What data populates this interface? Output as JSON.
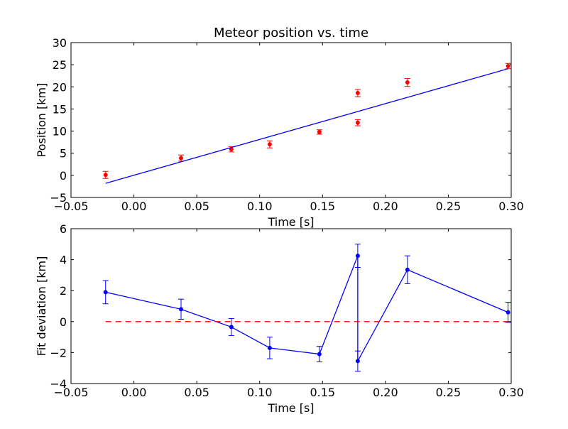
{
  "chart_data": [
    {
      "type": "scatter",
      "title": "Meteor position vs. time",
      "xlabel": "Time [s]",
      "ylabel": "Position [km]",
      "xlim": [
        -0.05,
        0.3
      ],
      "ylim": [
        -5,
        30
      ],
      "xticks": [
        -0.05,
        0.0,
        0.05,
        0.1,
        0.15,
        0.2,
        0.25,
        0.3
      ],
      "xtick_labels": [
        "−0.05",
        "0.00",
        "0.05",
        "0.10",
        "0.15",
        "0.20",
        "0.25",
        "0.30"
      ],
      "yticks": [
        -5,
        0,
        5,
        10,
        15,
        20,
        25,
        30
      ],
      "ytick_labels": [
        "−5",
        "0",
        "5",
        "10",
        "15",
        "20",
        "25",
        "30"
      ],
      "grid": false,
      "series": [
        {
          "kind": "errorbar-points",
          "color": "#ff0000",
          "x": [
            -0.0225,
            0.0375,
            0.0775,
            0.108,
            0.1475,
            0.178,
            0.178,
            0.2175,
            0.2975
          ],
          "y": [
            0.1,
            3.9,
            5.9,
            7.0,
            9.8,
            11.9,
            18.6,
            21.0,
            24.7
          ],
          "yerr": [
            0.8,
            0.7,
            0.6,
            0.8,
            0.5,
            0.7,
            0.8,
            0.9,
            0.6
          ]
        },
        {
          "kind": "line",
          "color": "#0000ff",
          "x": [
            -0.0225,
            0.2975
          ],
          "y": [
            -1.8,
            24.1
          ]
        }
      ]
    },
    {
      "type": "line",
      "title": "",
      "xlabel": "Time [s]",
      "ylabel": "Fit deviation [km]",
      "xlim": [
        -0.05,
        0.3
      ],
      "ylim": [
        -4,
        6
      ],
      "xticks": [
        -0.05,
        0.0,
        0.05,
        0.1,
        0.15,
        0.2,
        0.25,
        0.3
      ],
      "xtick_labels": [
        "−0.05",
        "0.00",
        "0.05",
        "0.10",
        "0.15",
        "0.20",
        "0.25",
        "0.30"
      ],
      "yticks": [
        -4,
        -2,
        0,
        2,
        4,
        6
      ],
      "ytick_labels": [
        "−4",
        "−2",
        "0",
        "2",
        "4",
        "6"
      ],
      "grid": false,
      "series": [
        {
          "kind": "errorbar-line",
          "color": "#0000ff",
          "x": [
            -0.0225,
            0.0375,
            0.0775,
            0.108,
            0.1475,
            0.178,
            0.178,
            0.2175,
            0.2975
          ],
          "y": [
            1.9,
            0.8,
            -0.35,
            -1.7,
            -2.1,
            4.25,
            -2.55,
            3.35,
            0.6
          ],
          "yerr": [
            0.75,
            0.65,
            0.55,
            0.7,
            0.5,
            0.75,
            0.65,
            0.9,
            0.65
          ]
        },
        {
          "kind": "dashed-line",
          "color": "#ff0000",
          "x": [
            -0.0225,
            0.2975
          ],
          "y": [
            0,
            0
          ]
        }
      ]
    }
  ]
}
